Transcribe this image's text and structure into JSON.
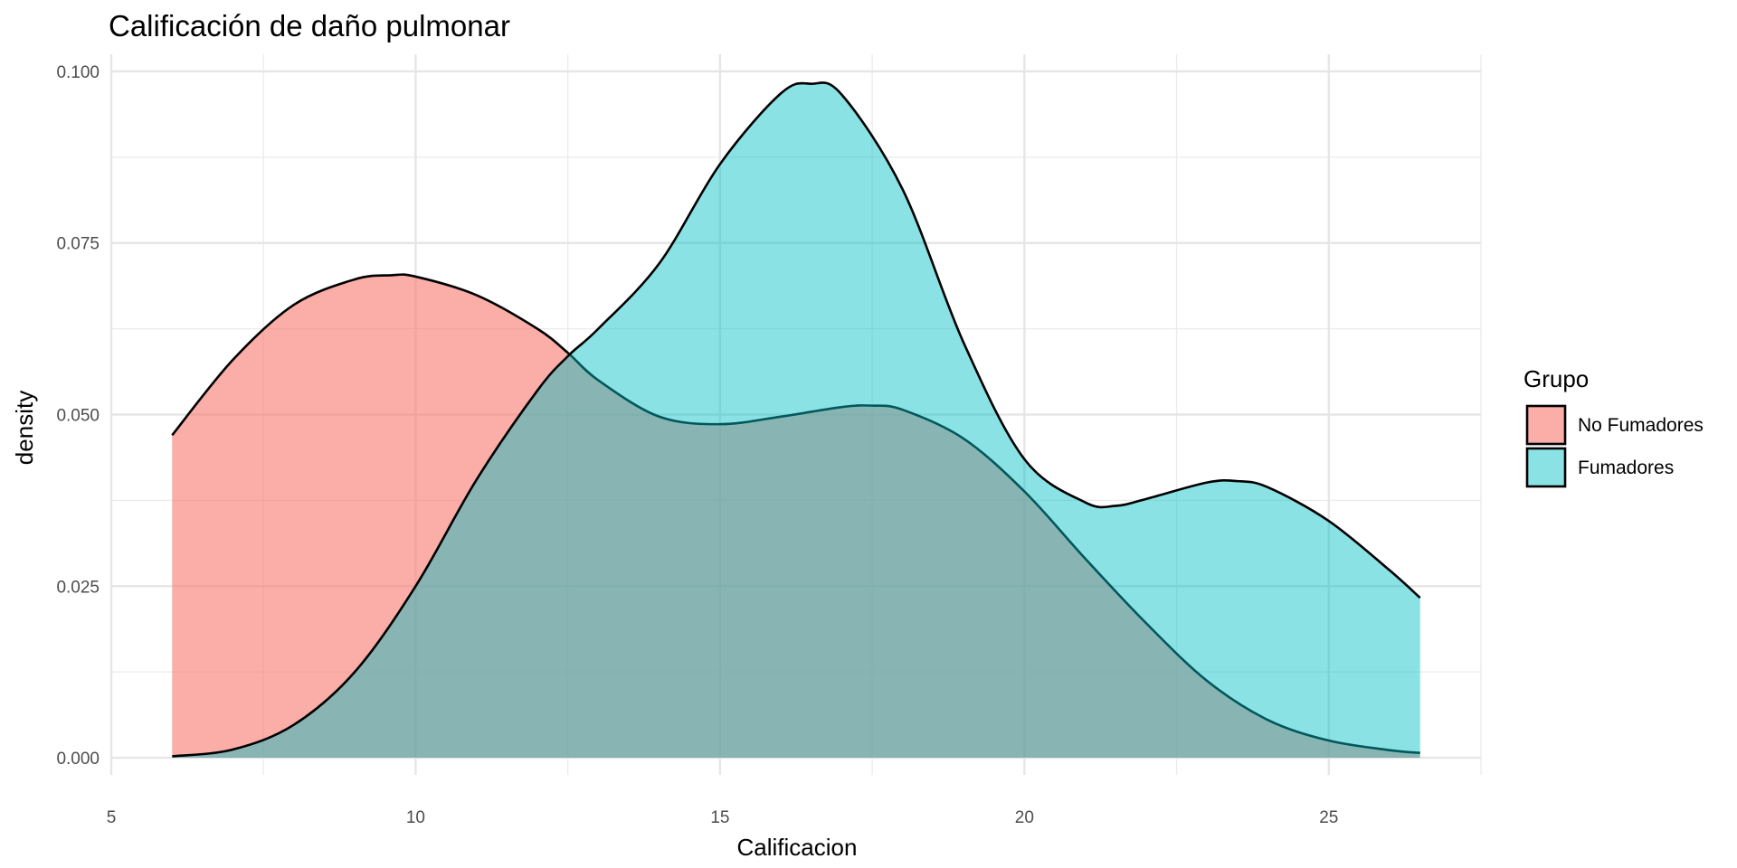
{
  "chart_data": {
    "type": "area",
    "title": "Calificación de daño pulmonar",
    "xlabel": "Calificacion",
    "ylabel": "density",
    "xlim": [
      5,
      27.5
    ],
    "ylim": [
      -0.0025,
      0.1025
    ],
    "xticks": [
      5,
      10,
      15,
      20,
      25
    ],
    "xtick_labels": [
      "5",
      "10",
      "15",
      "20",
      "25"
    ],
    "yticks": [
      0,
      0.025,
      0.05,
      0.075,
      0.1
    ],
    "ytick_labels": [
      "0.000",
      "0.025",
      "0.050",
      "0.075",
      "0.100"
    ],
    "grid": true,
    "legend": {
      "title": "Grupo",
      "position": "right"
    },
    "series": [
      {
        "name": "No Fumadores",
        "color": "#F8766D",
        "fill_opacity": 0.6,
        "x": [
          6.0,
          7.0,
          8.0,
          9.0,
          9.6,
          10.0,
          11.0,
          12.0,
          12.5,
          13.0,
          14.0,
          15.0,
          16.0,
          17.0,
          17.5,
          18.0,
          19.0,
          20.0,
          21.0,
          22.0,
          23.0,
          24.0,
          25.0,
          26.0,
          26.5
        ],
        "y": [
          0.047,
          0.058,
          0.066,
          0.0697,
          0.0703,
          0.0701,
          0.0674,
          0.0625,
          0.059,
          0.055,
          0.0497,
          0.0486,
          0.0497,
          0.0511,
          0.0513,
          0.0507,
          0.0465,
          0.0388,
          0.029,
          0.0196,
          0.0112,
          0.0055,
          0.0025,
          0.0011,
          0.0007
        ]
      },
      {
        "name": "Fumadores",
        "color": "#00BFC4",
        "fill_opacity": 0.46,
        "x": [
          6.0,
          7.0,
          8.0,
          9.0,
          10.0,
          11.0,
          12.0,
          12.5,
          13.0,
          14.0,
          15.0,
          16.0,
          16.5,
          17.0,
          18.0,
          19.0,
          20.0,
          21.0,
          21.5,
          22.0,
          23.0,
          23.5,
          24.0,
          25.0,
          26.0,
          26.5
        ],
        "y": [
          0.0002,
          0.0012,
          0.0048,
          0.0125,
          0.025,
          0.0405,
          0.0535,
          0.0585,
          0.0625,
          0.072,
          0.0865,
          0.0968,
          0.0982,
          0.0966,
          0.0828,
          0.0605,
          0.0435,
          0.0372,
          0.0367,
          0.0377,
          0.0401,
          0.0403,
          0.0394,
          0.0345,
          0.0273,
          0.0233
        ]
      }
    ]
  }
}
